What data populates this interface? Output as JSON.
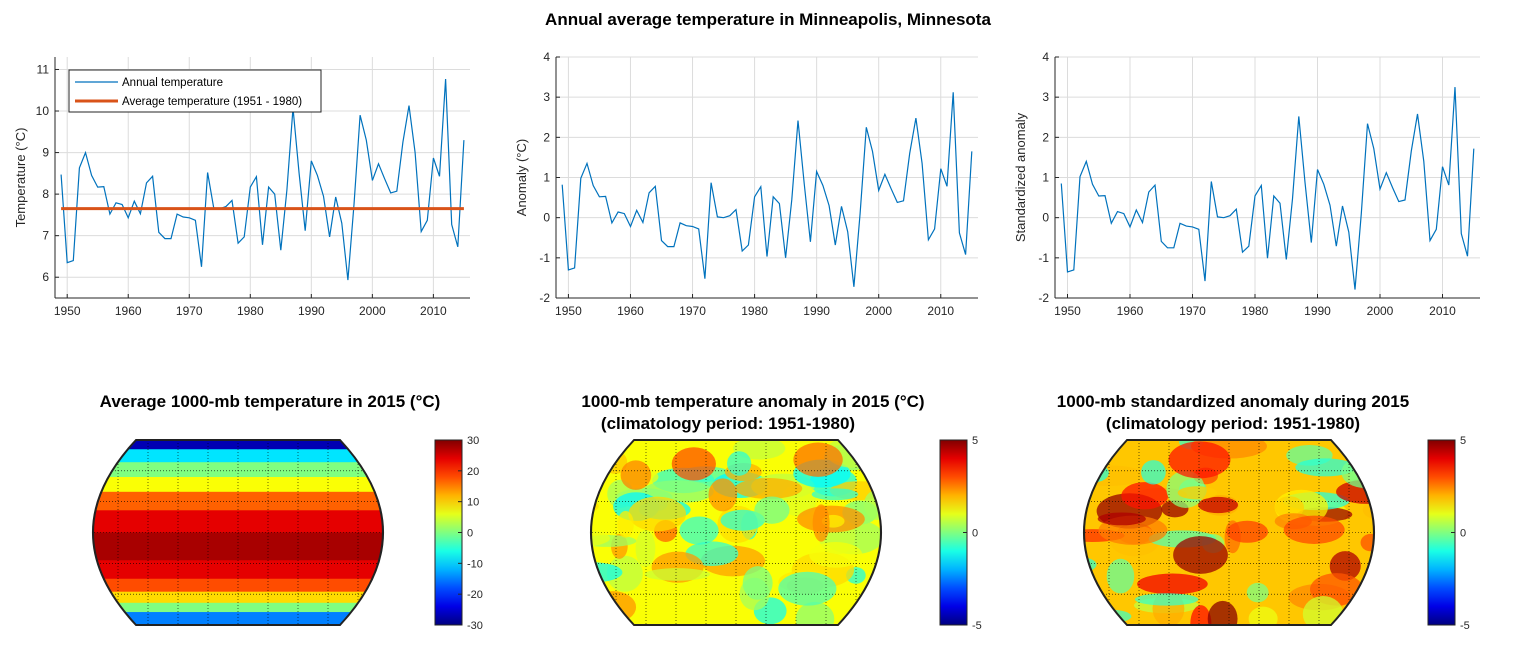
{
  "figure_title": "Annual average temperature in Minneapolis, Minnesota",
  "chart_data": [
    {
      "type": "line",
      "ylabel": "Temperature (°C)",
      "xlim": [
        1948,
        2016
      ],
      "ylim": [
        5.5,
        11.3
      ],
      "xticks": [
        1950,
        1960,
        1970,
        1980,
        1990,
        2000,
        2010
      ],
      "yticks": [
        6,
        7,
        8,
        9,
        10,
        11
      ],
      "grid": true,
      "legend": {
        "placement": "top-left",
        "entries": [
          "Annual temperature",
          "Average temperature (1951 - 1980)"
        ]
      },
      "x_start": 1949,
      "series": [
        {
          "name": "Annual temperature",
          "color": "#0072BD",
          "values": [
            8.47,
            6.35,
            6.4,
            8.63,
            9.0,
            8.45,
            8.17,
            8.18,
            7.52,
            7.79,
            7.75,
            7.43,
            7.83,
            7.53,
            8.27,
            8.43,
            7.08,
            6.93,
            6.93,
            7.52,
            7.45,
            7.43,
            7.37,
            6.25,
            8.52,
            7.67,
            7.65,
            7.7,
            7.85,
            6.82,
            6.97,
            8.17,
            8.42,
            6.78,
            8.17,
            8.0,
            6.65,
            8.1,
            10.07,
            8.5,
            7.12,
            8.8,
            8.45,
            7.95,
            6.97,
            7.93,
            7.3,
            5.93,
            7.75,
            9.9,
            9.3,
            8.33,
            8.73,
            8.37,
            8.03,
            8.07,
            9.25,
            10.13,
            9.0,
            7.1,
            7.37,
            8.87,
            8.43,
            10.77,
            7.27,
            6.73,
            9.3
          ]
        },
        {
          "name": "Average temperature (1951 - 1980)",
          "color": "#D95319",
          "constant": 7.65
        }
      ]
    },
    {
      "type": "line",
      "ylabel": "Anomaly (°C)",
      "xlim": [
        1948,
        2016
      ],
      "ylim": [
        -2,
        4
      ],
      "xticks": [
        1950,
        1960,
        1970,
        1980,
        1990,
        2000,
        2010
      ],
      "yticks": [
        -2,
        -1,
        0,
        1,
        2,
        3,
        4
      ],
      "grid": true,
      "x_start": 1949,
      "series": [
        {
          "color": "#0072BD",
          "values": [
            0.82,
            -1.3,
            -1.25,
            0.98,
            1.35,
            0.8,
            0.52,
            0.53,
            -0.13,
            0.14,
            0.1,
            -0.22,
            0.18,
            -0.12,
            0.62,
            0.78,
            -0.57,
            -0.72,
            -0.72,
            -0.13,
            -0.2,
            -0.22,
            -0.28,
            -1.52,
            0.87,
            0.02,
            0.0,
            0.05,
            0.2,
            -0.83,
            -0.68,
            0.52,
            0.77,
            -0.97,
            0.52,
            0.35,
            -1.0,
            0.45,
            2.42,
            0.85,
            -0.6,
            1.15,
            0.8,
            0.3,
            -0.68,
            0.28,
            -0.35,
            -1.72,
            0.1,
            2.25,
            1.65,
            0.68,
            1.08,
            0.72,
            0.38,
            0.42,
            1.6,
            2.48,
            1.35,
            -0.55,
            -0.28,
            1.22,
            0.78,
            3.12,
            -0.38,
            -0.92,
            1.65
          ]
        }
      ]
    },
    {
      "type": "line",
      "ylabel": "Standardized anomaly",
      "xlim": [
        1948,
        2016
      ],
      "ylim": [
        -2,
        4
      ],
      "xticks": [
        1950,
        1960,
        1970,
        1980,
        1990,
        2000,
        2010
      ],
      "yticks": [
        -2,
        -1,
        0,
        1,
        2,
        3,
        4
      ],
      "grid": true,
      "x_start": 1949,
      "series": [
        {
          "color": "#0072BD",
          "values": [
            0.85,
            -1.35,
            -1.3,
            1.02,
            1.4,
            0.83,
            0.54,
            0.55,
            -0.14,
            0.15,
            0.1,
            -0.23,
            0.19,
            -0.12,
            0.64,
            0.81,
            -0.59,
            -0.75,
            -0.75,
            -0.14,
            -0.21,
            -0.23,
            -0.29,
            -1.58,
            0.9,
            0.02,
            0.0,
            0.05,
            0.21,
            -0.86,
            -0.71,
            0.54,
            0.8,
            -1.01,
            0.54,
            0.36,
            -1.04,
            0.47,
            2.52,
            0.88,
            -0.62,
            1.2,
            0.83,
            0.31,
            -0.71,
            0.29,
            -0.36,
            -1.79,
            0.1,
            2.34,
            1.72,
            0.71,
            1.12,
            0.75,
            0.4,
            0.44,
            1.66,
            2.58,
            1.4,
            -0.57,
            -0.29,
            1.27,
            0.81,
            3.25,
            -0.4,
            -0.96,
            1.72
          ]
        }
      ]
    },
    {
      "type": "heatmap",
      "title_line1": "Average 1000-mb temperature in 2015 (°C)",
      "title_line2": "",
      "colorbar": {
        "colormap": "jet",
        "range": [
          -30,
          30
        ],
        "ticks": [
          "30",
          "20",
          "10",
          "0",
          "-10",
          "-20",
          "-30"
        ]
      }
    },
    {
      "type": "heatmap",
      "title_line1": "1000-mb temperature anomaly in 2015 (°C)",
      "title_line2": "(climatology period: 1951-1980)",
      "colorbar": {
        "colormap": "jet",
        "range": [
          -5,
          5
        ],
        "ticks": [
          "5",
          "0",
          "-5"
        ]
      }
    },
    {
      "type": "heatmap",
      "title_line1": "1000-mb standardized anomaly during 2015",
      "title_line2": "(climatology period: 1951-1980)",
      "colorbar": {
        "colormap": "jet",
        "range": [
          -5,
          5
        ],
        "ticks": [
          "5",
          "0",
          "-5"
        ]
      }
    }
  ]
}
